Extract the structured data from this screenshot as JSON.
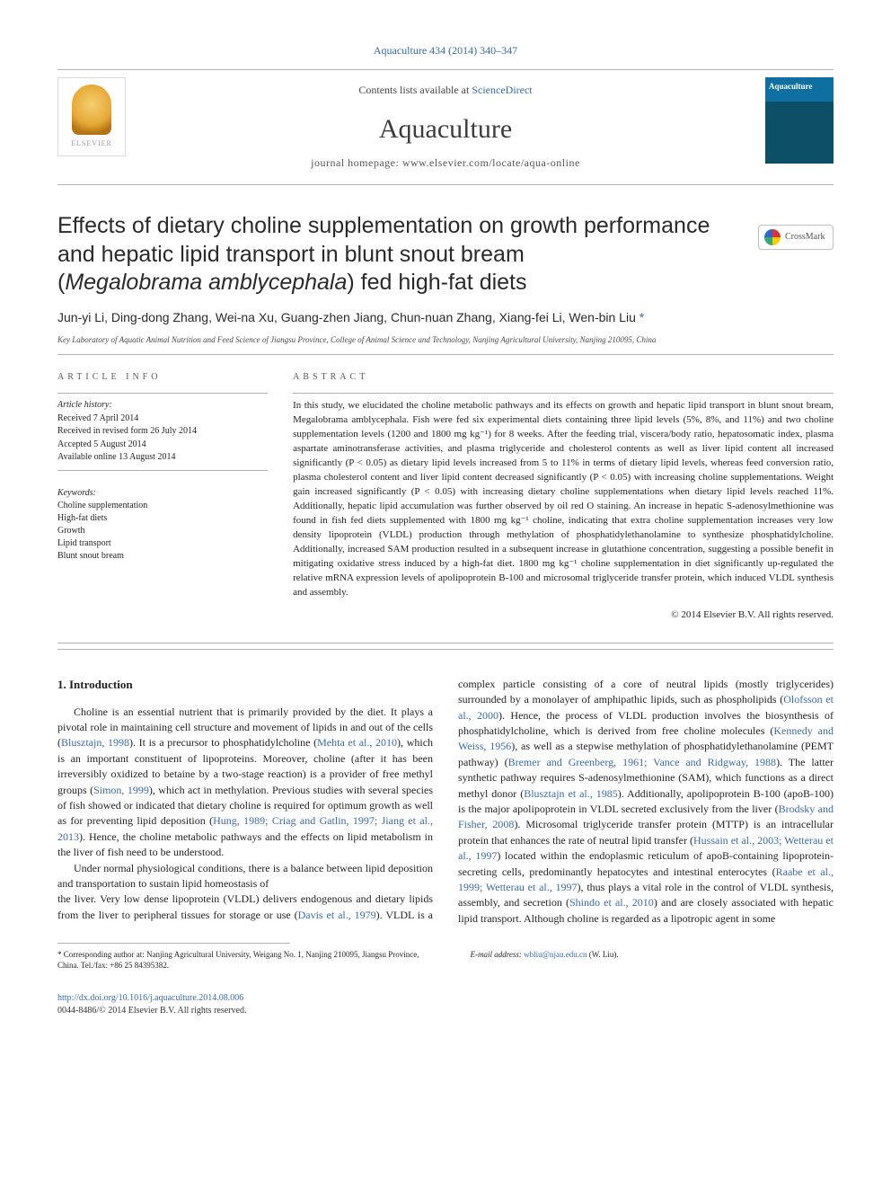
{
  "header": {
    "journal_ref": "Aquaculture 434 (2014) 340–347",
    "contents_prefix": "Contents lists available at ",
    "contents_link": "ScienceDirect",
    "journal_title": "Aquaculture",
    "homepage_prefix": "journal homepage: ",
    "homepage_url": "www.elsevier.com/locate/aqua-online",
    "publisher_logo": "ELSEVIER",
    "cover_caption": "Aquaculture"
  },
  "article": {
    "title_line1": "Effects of dietary choline supplementation on growth performance",
    "title_line2": "and hepatic lipid transport in blunt snout bream",
    "title_line3_prefix": "(",
    "title_line3_species": "Megalobrama amblycephala",
    "title_line3_suffix": ") fed high-fat diets",
    "crossmark": "CrossMark",
    "authors": "Jun-yi Li, Ding-dong Zhang, Wei-na Xu, Guang-zhen Jiang, Chun-nuan Zhang, Xiang-fei Li, Wen-bin Liu ",
    "corr_marker": "*",
    "affiliation": "Key Laboratory of Aquatic Animal Nutrition and Feed Science of Jiangsu Province, College of Animal Science and Technology, Nanjing Agricultural University, Nanjing 210095, China"
  },
  "info": {
    "section_head": "article info",
    "history_label": "Article history:",
    "received": "Received 7 April 2014",
    "revised": "Received in revised form 26 July 2014",
    "accepted": "Accepted 5 August 2014",
    "online": "Available online 13 August 2014",
    "keywords_label": "Keywords:",
    "keywords": [
      "Choline supplementation",
      "High-fat diets",
      "Growth",
      "Lipid transport",
      "Blunt snout bream"
    ]
  },
  "abstract": {
    "section_head": "abstract",
    "body": "In this study, we elucidated the choline metabolic pathways and its effects on growth and hepatic lipid transport in blunt snout bream, Megalobrama amblycephala. Fish were fed six experimental diets containing three lipid levels (5%, 8%, and 11%) and two choline supplementation levels (1200 and 1800 mg kg⁻¹) for 8 weeks. After the feeding trial, viscera/body ratio, hepatosomatic index, plasma aspartate aminotransferase activities, and plasma triglyceride and cholesterol contents as well as liver lipid content all increased significantly (P < 0.05) as dietary lipid levels increased from 5 to 11% in terms of dietary lipid levels, whereas feed conversion ratio, plasma cholesterol content and liver lipid content decreased significantly (P < 0.05) with increasing choline supplementations. Weight gain increased significantly (P < 0.05) with increasing dietary choline supplementations when dietary lipid levels reached 11%. Additionally, hepatic lipid accumulation was further observed by oil red O staining. An increase in hepatic S-adenosylmethionine was found in fish fed diets supplemented with 1800 mg kg⁻¹ choline, indicating that extra choline supplementation increases very low density lipoprotein (VLDL) production through methylation of phosphatidylethanolamine to synthesize phosphatidylcholine. Additionally, increased SAM production resulted in a subsequent increase in glutathione concentration, suggesting a possible benefit in mitigating oxidative stress induced by a high-fat diet. 1800 mg kg⁻¹ choline supplementation in diet significantly up-regulated the relative mRNA expression levels of apolipoprotein B-100 and microsomal triglyceride transfer protein, which induced VLDL synthesis and assembly.",
    "copyright": "© 2014 Elsevier B.V. All rights reserved."
  },
  "body": {
    "section1_title": "1. Introduction",
    "p1_a": "Choline is an essential nutrient that is primarily provided by the diet. It plays a pivotal role in maintaining cell structure and movement of lipids in and out of the cells (",
    "p1_c1": "Blusztajn, 1998",
    "p1_b": "). It is a precursor to phosphatidylcholine (",
    "p1_c2": "Mehta et al., 2010",
    "p1_c": "), which is an important constituent of lipoproteins. Moreover, choline (after it has been irreversibly oxidized to betaine by a two-stage reaction) is a provider of free methyl groups (",
    "p1_c3": "Simon, 1999",
    "p1_d": "), which act in methylation. Previous studies with several species of fish showed or indicated that dietary choline is required for optimum growth as well as for preventing lipid deposition (",
    "p1_c4": "Hung, 1989; Criag and Gatlin, 1997; Jiang et al., 2013",
    "p1_e": "). Hence, the choline metabolic pathways and the effects on lipid metabolism in the liver of fish need to be understood.",
    "p2": "Under normal physiological conditions, there is a balance between lipid deposition and transportation to sustain lipid homeostasis of",
    "p3_a": "the liver. Very low dense lipoprotein (VLDL) delivers endogenous and dietary lipids from the liver to peripheral tissues for storage or use (",
    "p3_c1": "Davis et al., 1979",
    "p3_b": "). VLDL is a complex particle consisting of a core of neutral lipids (mostly triglycerides) surrounded by a monolayer of amphipathic lipids, such as phospholipids (",
    "p3_c2": "Olofsson et al., 2000",
    "p3_c": "). Hence, the process of VLDL production involves the biosynthesis of phosphatidylcholine, which is derived from free choline molecules (",
    "p3_c3": "Kennedy and Weiss, 1956",
    "p3_d": "), as well as a stepwise methylation of phosphatidylethanolamine (PEMT pathway) (",
    "p3_c4": "Bremer and Greenberg, 1961; Vance and Ridgway, 1988",
    "p3_e": "). The latter synthetic pathway requires S-adenosylmethionine (SAM), which functions as a direct methyl donor (",
    "p3_c5": "Blusztajn et al., 1985",
    "p3_f": "). Additionally, apolipoprotein B-100 (apoB-100) is the major apolipoprotein in VLDL secreted exclusively from the liver (",
    "p3_c6": "Brodsky and Fisher, 2008",
    "p3_g": "). Microsomal triglyceride transfer protein (MTTP) is an intracellular protein that enhances the rate of neutral lipid transfer (",
    "p3_c7": "Hussain et al., 2003; Wetterau et al., 1997",
    "p3_h": ") located within the endoplasmic reticulum of apoB-containing lipoprotein-secreting cells, predominantly hepatocytes and intestinal enterocytes (",
    "p3_c8": "Raabe et al., 1999; Wetterau et al., 1997",
    "p3_i": "), thus plays a vital role in the control of VLDL synthesis, assembly, and secretion (",
    "p3_c9": "Shindo et al., 2010",
    "p3_j": ") and are closely associated with hepatic lipid transport. Although choline is regarded as a lipotropic agent in some"
  },
  "footnotes": {
    "corr_marker": "*",
    "corr_text": " Corresponding author at: Nanjing Agricultural University, Weigang No. 1, Nanjing 210095, Jiangsu Province, China. Tel./fax: +86 25 84395382.",
    "email_label": "E-mail address: ",
    "email": "wbliu@njau.edu.cn",
    "email_tail": " (W. Liu)."
  },
  "bottom": {
    "doi": "http://dx.doi.org/10.1016/j.aquaculture.2014.08.006",
    "issn_line": "0044-8486/© 2014 Elsevier B.V. All rights reserved."
  }
}
